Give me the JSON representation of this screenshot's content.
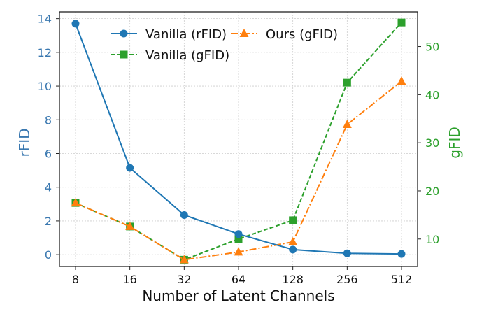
{
  "chart_data": {
    "type": "line",
    "xlabel": "Number of Latent Channels",
    "ylabel_left": "rFID",
    "ylabel_right": "gFID",
    "categories": [
      "8",
      "16",
      "32",
      "64",
      "128",
      "256",
      "512"
    ],
    "left_axis": {
      "ylim": [
        -0.7,
        14.4
      ],
      "ticks": [
        0,
        2,
        4,
        6,
        8,
        10,
        12,
        14
      ],
      "color": "#3a78b0"
    },
    "right_axis": {
      "ylim": [
        4.3,
        57.2
      ],
      "ticks": [
        10,
        20,
        30,
        40,
        50
      ],
      "color": "#2ca02c"
    },
    "grid": true,
    "legend_placement": "top-center",
    "series": [
      {
        "name": "Vanilla (rFID)",
        "axis": "left",
        "color": "#1f77b4",
        "marker": "circle",
        "linestyle": "solid",
        "values": [
          13.7,
          5.15,
          2.35,
          1.22,
          0.3,
          0.08,
          0.04
        ]
      },
      {
        "name": "Vanilla (gFID)",
        "axis": "right",
        "color": "#2ca02c",
        "marker": "square",
        "linestyle": "dashed",
        "values": [
          17.5,
          12.6,
          5.7,
          10.0,
          13.9,
          42.5,
          55.0
        ]
      },
      {
        "name": "Ours (gFID)",
        "axis": "right",
        "color": "#ff7f0e",
        "marker": "triangle",
        "linestyle": "dashdot",
        "values": [
          17.5,
          12.6,
          5.7,
          7.3,
          9.4,
          33.8,
          42.8
        ]
      }
    ]
  }
}
